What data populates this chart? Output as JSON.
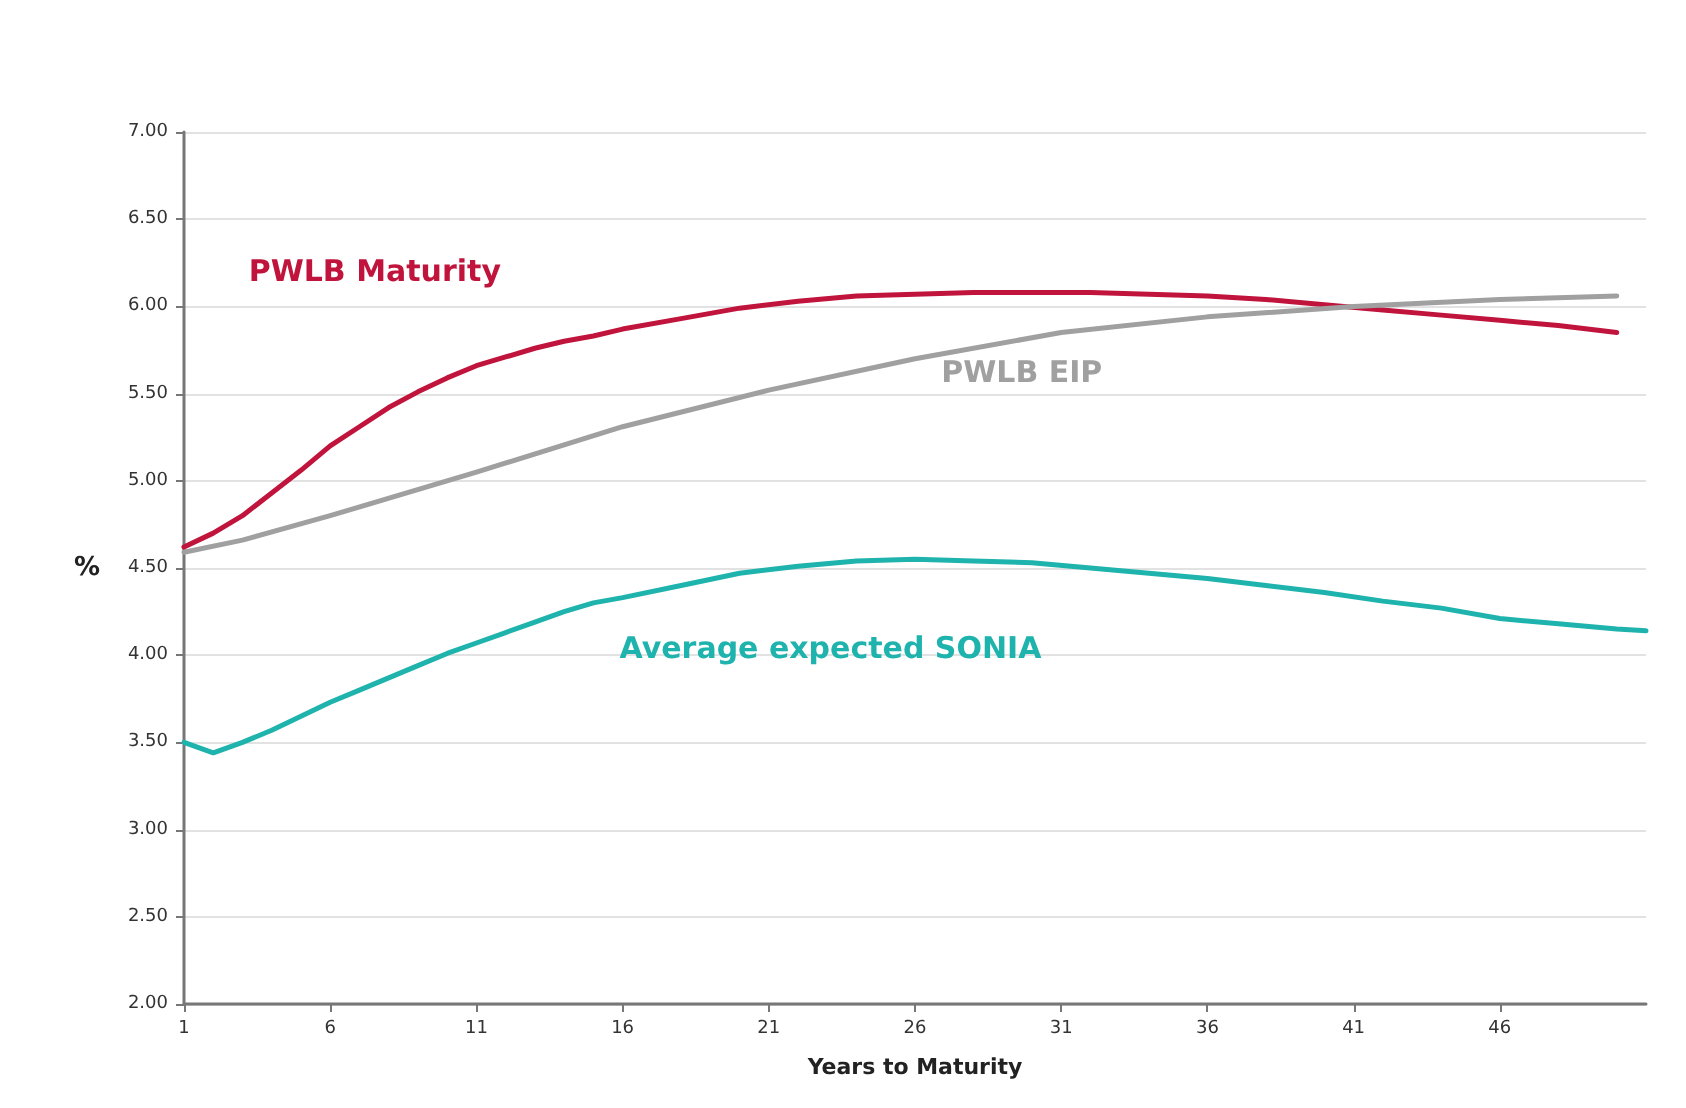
{
  "chart_data": {
    "type": "line",
    "xlabel": "Years to Maturity",
    "ylabel": "%",
    "xlim": [
      1,
      51
    ],
    "xticks": [
      1,
      6,
      11,
      16,
      21,
      26,
      31,
      36,
      41,
      46
    ],
    "ylim": [
      2,
      7
    ],
    "yticks": [
      {
        "value": 2,
        "label": "2.00"
      },
      {
        "value": 2.5,
        "label": "2.50"
      },
      {
        "value": 3,
        "label": "3.00"
      },
      {
        "value": 3.5,
        "label": "3.50"
      },
      {
        "value": 4,
        "label": "4.00"
      },
      {
        "value": 4.5,
        "label": "4.50"
      },
      {
        "value": 5,
        "label": "5.00"
      },
      {
        "value": 5.5,
        "label": "5.50"
      },
      {
        "value": 6,
        "label": "6.00"
      },
      {
        "value": 6.5,
        "label": "6.50"
      },
      {
        "value": 7,
        "label": "7.00"
      }
    ],
    "grid": "y",
    "legend": false,
    "marker": "none",
    "line_style": "solid",
    "series": [
      {
        "name": "PWLB Maturity",
        "color": "#c0143c",
        "x": [
          1,
          2,
          3,
          4,
          5,
          6,
          7,
          8,
          9,
          10,
          11,
          12,
          13,
          14,
          15,
          16,
          18,
          20,
          22,
          24,
          26,
          28,
          30,
          32,
          34,
          36,
          38,
          40,
          42,
          44,
          46,
          48,
          50
        ],
        "values": [
          4.62,
          4.7,
          4.8,
          4.93,
          5.06,
          5.2,
          5.31,
          5.42,
          5.51,
          5.59,
          5.66,
          5.71,
          5.76,
          5.8,
          5.83,
          5.87,
          5.93,
          5.99,
          6.03,
          6.06,
          6.07,
          6.08,
          6.08,
          6.08,
          6.07,
          6.06,
          6.04,
          6.01,
          5.98,
          5.95,
          5.92,
          5.89,
          5.85
        ]
      },
      {
        "name": "PWLB EIP",
        "color": "#a0a0a0",
        "x": [
          1,
          3,
          6,
          11,
          16,
          21,
          26,
          31,
          36,
          41,
          46,
          50
        ],
        "values": [
          4.59,
          4.66,
          4.8,
          5.05,
          5.31,
          5.52,
          5.7,
          5.85,
          5.94,
          6.0,
          6.04,
          6.06
        ]
      },
      {
        "name": "Average expected SONIA",
        "color": "#1fb3ad",
        "x": [
          1,
          2,
          3,
          4,
          5,
          6,
          7,
          8,
          9,
          10,
          11,
          12,
          13,
          14,
          15,
          16,
          18,
          20,
          22,
          24,
          26,
          28,
          30,
          32,
          34,
          36,
          38,
          40,
          42,
          44,
          46,
          48,
          50,
          51
        ],
        "values": [
          3.5,
          3.44,
          3.5,
          3.57,
          3.65,
          3.73,
          3.8,
          3.87,
          3.94,
          4.01,
          4.07,
          4.13,
          4.19,
          4.25,
          4.3,
          4.33,
          4.4,
          4.47,
          4.51,
          4.54,
          4.55,
          4.54,
          4.53,
          4.5,
          4.47,
          4.44,
          4.4,
          4.36,
          4.31,
          4.27,
          4.21,
          4.18,
          4.15,
          4.14
        ]
      }
    ]
  }
}
